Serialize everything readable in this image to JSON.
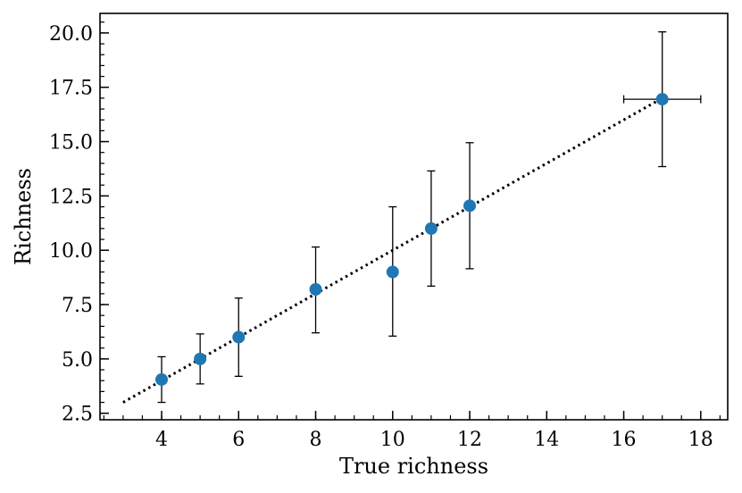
{
  "chart_data": {
    "type": "scatter",
    "title": "",
    "xlabel": "True richness",
    "ylabel": "Richness",
    "xlim": [
      2.4,
      18.7
    ],
    "ylim": [
      2.2,
      20.9
    ],
    "xticks": [
      4,
      6,
      8,
      10,
      12,
      14,
      16,
      18
    ],
    "xtick_labels": [
      "4",
      "6",
      "8",
      "10",
      "12",
      "14",
      "16",
      "18"
    ],
    "yticks": [
      2.5,
      5.0,
      7.5,
      10.0,
      12.5,
      15.0,
      17.5,
      20.0
    ],
    "ytick_labels": [
      "2.5",
      "5.0",
      "7.5",
      "10.0",
      "12.5",
      "15.0",
      "17.5",
      "20.0"
    ],
    "grid": false,
    "points": [
      {
        "x": 4,
        "y": 4.05,
        "ylow": 3.0,
        "yhigh": 5.1
      },
      {
        "x": 5,
        "y": 5.0,
        "ylow": 3.85,
        "yhigh": 6.15
      },
      {
        "x": 6,
        "y": 6.0,
        "ylow": 4.2,
        "yhigh": 7.8
      },
      {
        "x": 8,
        "y": 8.2,
        "ylow": 6.2,
        "yhigh": 10.15
      },
      {
        "x": 10,
        "y": 9.0,
        "ylow": 6.05,
        "yhigh": 12.0
      },
      {
        "x": 11,
        "y": 11.0,
        "ylow": 8.35,
        "yhigh": 13.65
      },
      {
        "x": 12,
        "y": 12.05,
        "ylow": 9.15,
        "yhigh": 14.95
      },
      {
        "x": 17,
        "y": 16.95,
        "ylow": 13.85,
        "yhigh": 20.05,
        "xlow": 16,
        "xhigh": 18
      }
    ],
    "reference_line": {
      "style": "dotted",
      "from": [
        3,
        3
      ],
      "to": [
        17,
        17
      ]
    },
    "colors": {
      "marker": "#1f77b4",
      "errorbar": "#000000",
      "line": "#000000"
    }
  }
}
